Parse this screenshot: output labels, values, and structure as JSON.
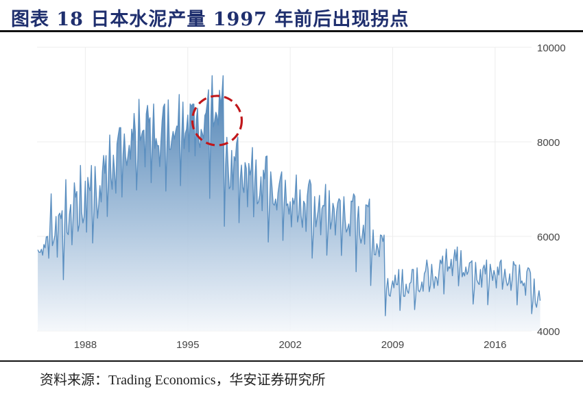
{
  "title": "图表 18  日本水泥产量 1997 年前后出现拐点",
  "source": "资料来源：Trading Economics，华安证券研究所",
  "colors": {
    "title": "#1f2f6e",
    "line": "#5b8fc0",
    "fill_top": "#3f77ad",
    "fill_bottom": "#f4f7fb",
    "grid": "#ececec",
    "annotation": "#c0171b",
    "tick_text": "#444444"
  },
  "chart_data": {
    "type": "area",
    "title": "日本水泥产量 1997 年前后出现拐点",
    "xlabel": "",
    "ylabel": "",
    "ylim": [
      4000,
      10000
    ],
    "xlim": [
      1985.2,
      2019.6
    ],
    "y_ticks": [
      4000,
      6000,
      8000,
      10000
    ],
    "x_ticks": [
      "1988",
      "1995",
      "2002",
      "2009",
      "2016"
    ],
    "grid": true,
    "legend": "none",
    "y_axis_position": "right",
    "annotation": {
      "type": "dashed-circle",
      "center_year": 1997.5,
      "center_value": 8450,
      "label": "inflection point ~1997"
    },
    "series": [
      {
        "name": "Japan Cement Production (monthly)",
        "annual_anchor": {
          "years": [
            1985,
            1986,
            1987,
            1988,
            1989,
            1990,
            1991,
            1992,
            1993,
            1994,
            1995,
            1996,
            1997,
            1998,
            1999,
            2000,
            2001,
            2002,
            2003,
            2004,
            2005,
            2006,
            2007,
            2008,
            2009,
            2010,
            2011,
            2012,
            2013,
            2014,
            2015,
            2016,
            2017,
            2018,
            2019
          ],
          "low": [
            5300,
            4900,
            5000,
            5300,
            5600,
            6100,
            6600,
            6800,
            6900,
            6900,
            7000,
            7100,
            6700,
            6000,
            6000,
            5900,
            5800,
            5600,
            5500,
            5400,
            5400,
            5400,
            5200,
            4900,
            4300,
            4300,
            4300,
            4500,
            4700,
            4600,
            4500,
            4500,
            4500,
            4500,
            4200
          ],
          "high": [
            6000,
            6900,
            7200,
            7500,
            7800,
            8300,
            8600,
            8900,
            8800,
            9000,
            9000,
            9100,
            9400,
            8100,
            7900,
            7700,
            7500,
            7300,
            7200,
            7100,
            7000,
            6900,
            6800,
            6300,
            5300,
            5300,
            5500,
            5600,
            5800,
            5700,
            5500,
            5500,
            5500,
            5400,
            5100
          ]
        }
      }
    ]
  }
}
